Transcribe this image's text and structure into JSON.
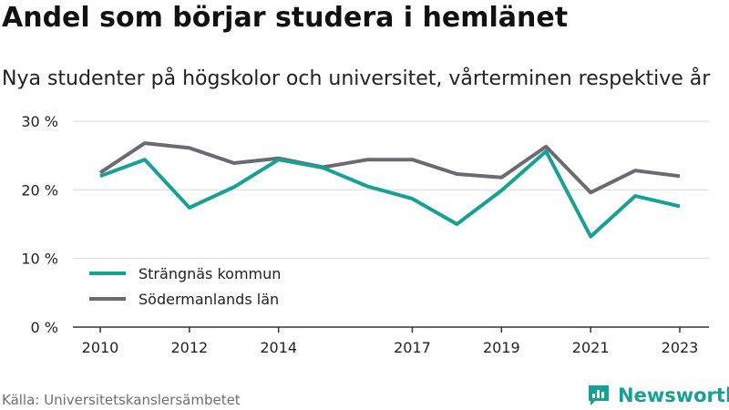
{
  "title": "Andel som börjar studera i hemlänet",
  "subtitle": "Nya studenter på högskolor och universitet, vårterminen respektive år",
  "source": "Källa: Universitetskanslersämbetet",
  "brand": {
    "name": "Newsworthy",
    "icon": "bar-chart-chat-bubble-icon",
    "color": "#16a196"
  },
  "chart_data": {
    "type": "line",
    "title": "Andel som börjar studera i hemlänet",
    "subtitle": "Nya studenter på högskolor och universitet, vårterminen respektive år",
    "x": [
      2010,
      2011,
      2012,
      2013,
      2014,
      2015,
      2016,
      2017,
      2018,
      2019,
      2020,
      2021,
      2022,
      2023
    ],
    "x_tick_values": [
      2010,
      2012,
      2014,
      2017,
      2019,
      2021,
      2023
    ],
    "x_tick_labels": [
      "2010",
      "2012",
      "2014",
      "2017",
      "2019",
      "2021",
      "2023"
    ],
    "y_ticks": [
      0,
      10,
      20,
      30
    ],
    "y_tick_labels": [
      "0 %",
      "10 %",
      "20 %",
      "30 %"
    ],
    "ylim": [
      0,
      30
    ],
    "xlim": [
      2010,
      2023
    ],
    "grid": true,
    "legend_position": "bottom-left",
    "series": [
      {
        "name": "Strängnäs kommun",
        "color": "#16a196",
        "values": [
          22.0,
          24.4,
          17.4,
          20.4,
          24.4,
          23.2,
          20.5,
          18.7,
          15.0,
          19.9,
          25.6,
          13.2,
          19.1,
          17.6
        ]
      },
      {
        "name": "Södermanlands län",
        "color": "#6b6a73",
        "values": [
          22.5,
          26.8,
          26.1,
          23.9,
          24.6,
          23.3,
          24.4,
          24.4,
          22.3,
          21.8,
          26.3,
          19.6,
          22.8,
          22.0
        ]
      }
    ]
  }
}
